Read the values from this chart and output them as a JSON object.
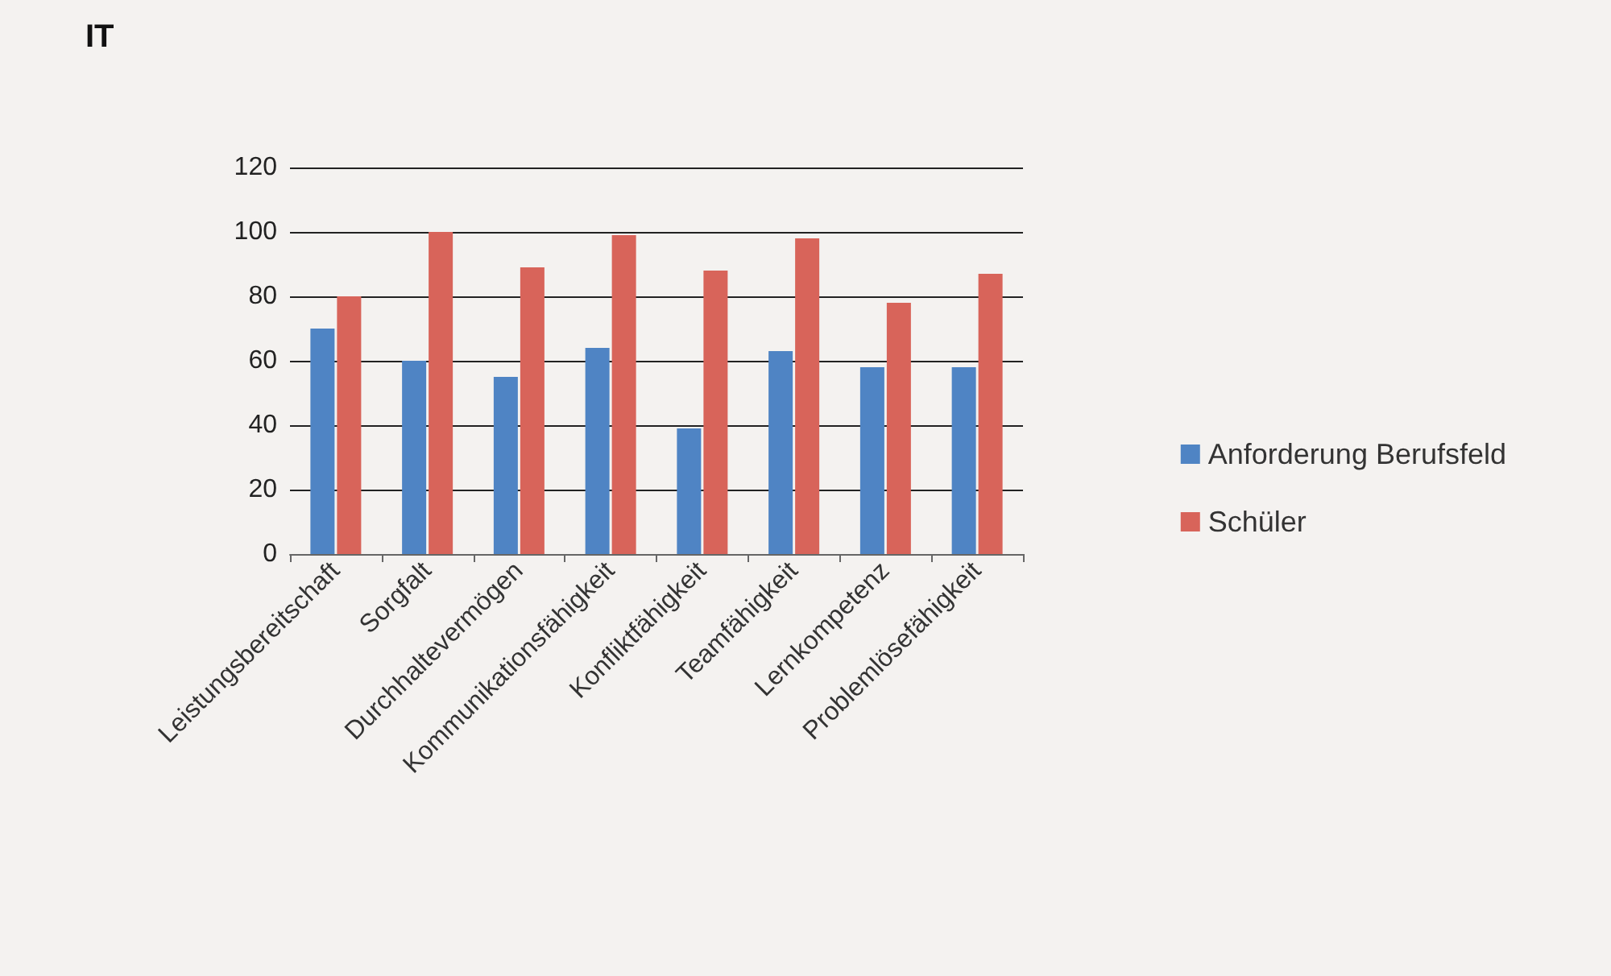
{
  "chart_data": {
    "type": "bar",
    "title": "IT",
    "categories": [
      "Leistungsbereitschaft",
      "Sorgfalt",
      "Durchhaltevermögen",
      "Kommunikationsfähigkeit",
      "Konfliktfähigkeit",
      "Teamfähigkeit",
      "Lernkompetenz",
      "Problemlösefähigkeit"
    ],
    "series": [
      {
        "name": "Anforderung Berufsfeld",
        "color": "#4f84c4",
        "values": [
          70,
          60,
          55,
          64,
          39,
          63,
          58,
          58
        ]
      },
      {
        "name": "Schüler",
        "color": "#d8645a",
        "values": [
          80,
          100,
          89,
          99,
          88,
          98,
          78,
          87
        ]
      }
    ],
    "ylim": [
      0,
      120
    ],
    "yticks": [
      0,
      20,
      40,
      60,
      80,
      100,
      120
    ],
    "grid": "y",
    "legend": "right"
  }
}
